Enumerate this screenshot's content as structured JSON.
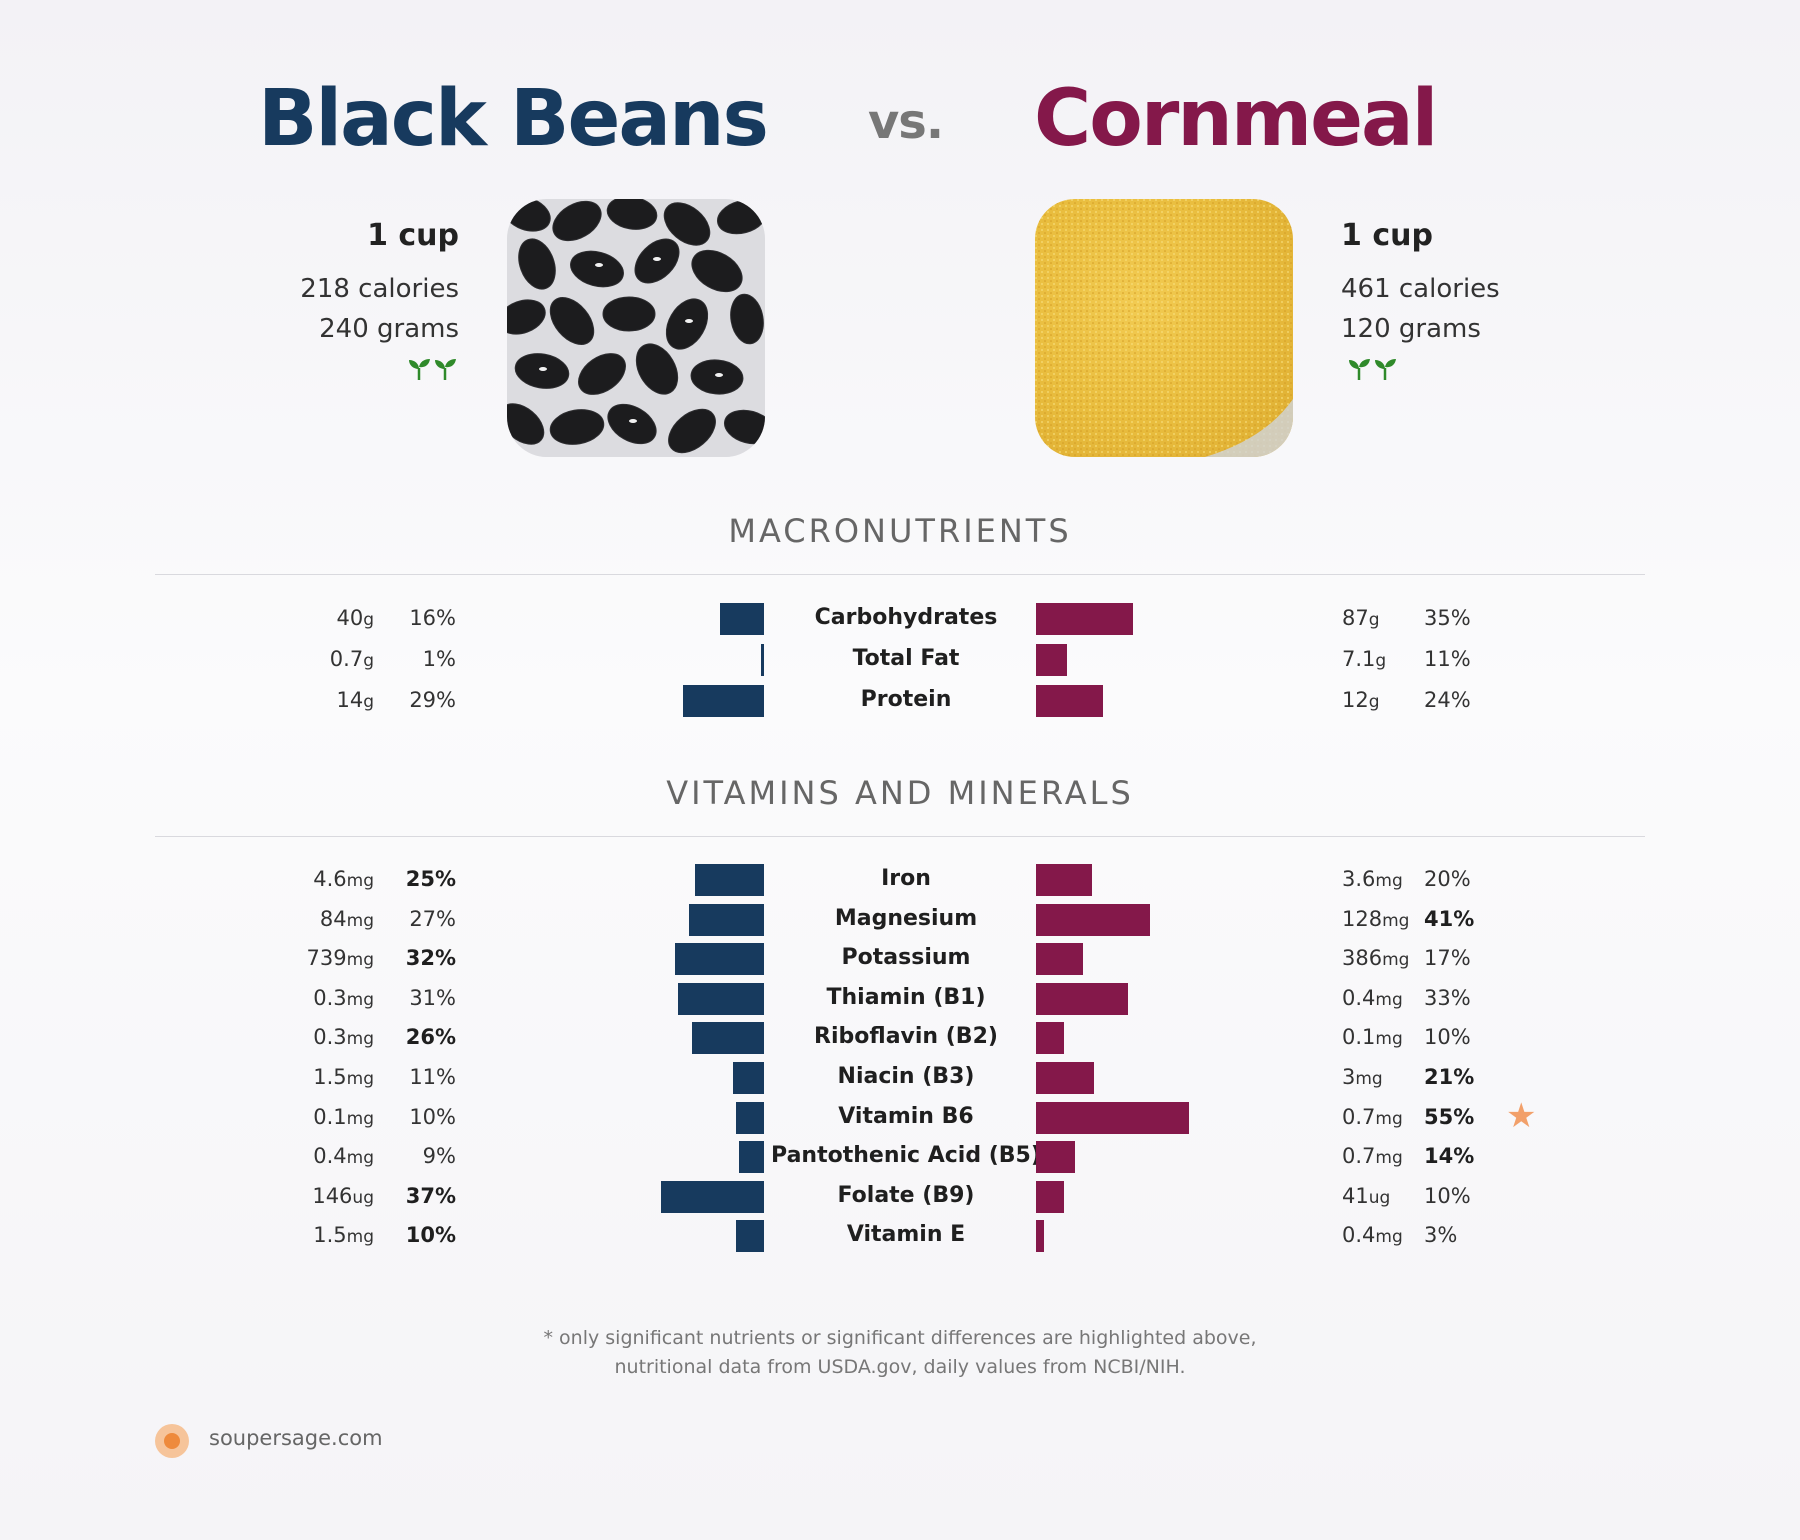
{
  "header": {
    "left_title": "Black Beans",
    "vs": "vs.",
    "right_title": "Cornmeal"
  },
  "left_food": {
    "serving": "1 cup",
    "calories": "218 calories",
    "grams": "240 grams",
    "icon": "sprout-icon",
    "color": "#173a5e"
  },
  "right_food": {
    "serving": "1 cup",
    "calories": "461 calories",
    "grams": "120 grams",
    "icon": "sprout-icon",
    "color": "#84184a"
  },
  "sections": {
    "macros_title": "MACRONUTRIENTS",
    "vitamins_title": "VITAMINS AND MINERALS"
  },
  "chart_data": {
    "type": "bar",
    "orientation": "horizontal-diverging",
    "series": [
      {
        "name": "Black Beans",
        "color": "#173a5e"
      },
      {
        "name": "Cornmeal",
        "color": "#84184a"
      }
    ],
    "macros": [
      {
        "label": "Carbohydrates",
        "left_amount": "40",
        "left_unit": "g",
        "left_pct": 16,
        "left_bold": false,
        "right_amount": "87",
        "right_unit": "g",
        "right_pct": 35,
        "right_bold": false
      },
      {
        "label": "Total Fat",
        "left_amount": "0.7",
        "left_unit": "g",
        "left_pct": 1,
        "left_bold": false,
        "right_amount": "7.1",
        "right_unit": "g",
        "right_pct": 11,
        "right_bold": false
      },
      {
        "label": "Protein",
        "left_amount": "14",
        "left_unit": "g",
        "left_pct": 29,
        "left_bold": false,
        "right_amount": "12",
        "right_unit": "g",
        "right_pct": 24,
        "right_bold": false
      }
    ],
    "vitamins": [
      {
        "label": "Iron",
        "left_amount": "4.6",
        "left_unit": "mg",
        "left_pct": 25,
        "left_bold": true,
        "right_amount": "3.6",
        "right_unit": "mg",
        "right_pct": 20,
        "right_bold": false
      },
      {
        "label": "Magnesium",
        "left_amount": "84",
        "left_unit": "mg",
        "left_pct": 27,
        "left_bold": false,
        "right_amount": "128",
        "right_unit": "mg",
        "right_pct": 41,
        "right_bold": true
      },
      {
        "label": "Potassium",
        "left_amount": "739",
        "left_unit": "mg",
        "left_pct": 32,
        "left_bold": true,
        "right_amount": "386",
        "right_unit": "mg",
        "right_pct": 17,
        "right_bold": false
      },
      {
        "label": "Thiamin (B1)",
        "left_amount": "0.3",
        "left_unit": "mg",
        "left_pct": 31,
        "left_bold": false,
        "right_amount": "0.4",
        "right_unit": "mg",
        "right_pct": 33,
        "right_bold": false
      },
      {
        "label": "Riboflavin (B2)",
        "left_amount": "0.3",
        "left_unit": "mg",
        "left_pct": 26,
        "left_bold": true,
        "right_amount": "0.1",
        "right_unit": "mg",
        "right_pct": 10,
        "right_bold": false
      },
      {
        "label": "Niacin (B3)",
        "left_amount": "1.5",
        "left_unit": "mg",
        "left_pct": 11,
        "left_bold": false,
        "right_amount": "3",
        "right_unit": "mg",
        "right_pct": 21,
        "right_bold": true
      },
      {
        "label": "Vitamin B6",
        "left_amount": "0.1",
        "left_unit": "mg",
        "left_pct": 10,
        "left_bold": false,
        "right_amount": "0.7",
        "right_unit": "mg",
        "right_pct": 55,
        "right_bold": true,
        "star": true
      },
      {
        "label": "Pantothenic Acid (B5)",
        "left_amount": "0.4",
        "left_unit": "mg",
        "left_pct": 9,
        "left_bold": false,
        "right_amount": "0.7",
        "right_unit": "mg",
        "right_pct": 14,
        "right_bold": true
      },
      {
        "label": "Folate (B9)",
        "left_amount": "146",
        "left_unit": "ug",
        "left_pct": 37,
        "left_bold": true,
        "right_amount": "41",
        "right_unit": "ug",
        "right_pct": 10,
        "right_bold": false
      },
      {
        "label": "Vitamin E",
        "left_amount": "1.5",
        "left_unit": "mg",
        "left_pct": 10,
        "left_bold": true,
        "right_amount": "0.4",
        "right_unit": "mg",
        "right_pct": 3,
        "right_bold": false
      }
    ]
  },
  "footnote": {
    "line1": "* only significant nutrients or significant differences are highlighted above,",
    "line2": "nutritional data from USDA.gov, daily values from NCBI/NIH."
  },
  "brand": {
    "name": "soupersage.com",
    "logo_icon": "soupersage-logo-icon",
    "star_icon": "star-icon"
  }
}
